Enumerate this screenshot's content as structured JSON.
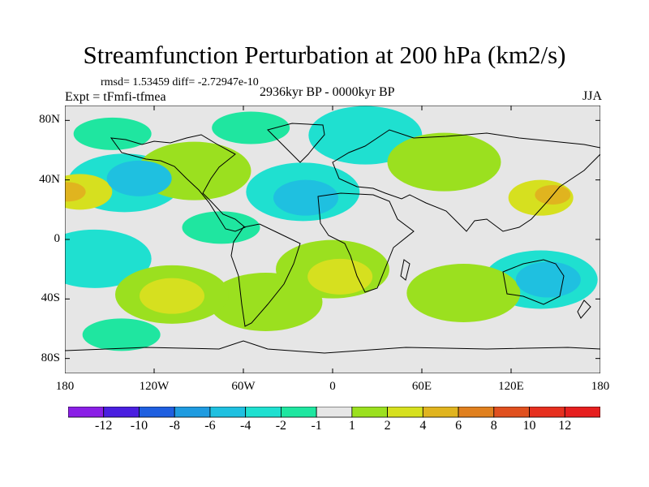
{
  "title": "Streamfunction Perturbation at 200 hPa (km2/s)",
  "stats": "rmsd= 1.53459 diff= -2.72947e-10",
  "experiment": "Expt = tFmfi-tfmea",
  "period": "2936kyr BP - 0000kyr BP",
  "season": "JJA",
  "axes": {
    "y_ticks": [
      {
        "label": "80N",
        "lat": 80
      },
      {
        "label": "40N",
        "lat": 40
      },
      {
        "label": "0",
        "lat": 0
      },
      {
        "label": "40S",
        "lat": -40
      },
      {
        "label": "80S",
        "lat": -80
      }
    ],
    "x_ticks": [
      {
        "label": "180",
        "lon": -180
      },
      {
        "label": "120W",
        "lon": -120
      },
      {
        "label": "60W",
        "lon": -60
      },
      {
        "label": "0",
        "lon": 0
      },
      {
        "label": "60E",
        "lon": 60
      },
      {
        "label": "120E",
        "lon": 120
      },
      {
        "label": "180",
        "lon": 180
      }
    ],
    "lat_range": [
      -90,
      90
    ],
    "lon_range": [
      -180,
      180
    ]
  },
  "colorbar": {
    "labels": [
      "-12",
      "-10",
      "-8",
      "-6",
      "-4",
      "-2",
      "-1",
      "1",
      "2",
      "4",
      "6",
      "8",
      "10",
      "12"
    ],
    "colors": [
      "#8a1fe6",
      "#4a1fe0",
      "#1f5fe0",
      "#1f9be0",
      "#1fc0e0",
      "#1fe0d0",
      "#1fe6a0",
      "#e6e6e6",
      "#9be01f",
      "#d6e01f",
      "#e0b41f",
      "#e0801f",
      "#e0501f",
      "#e6301f",
      "#e61f1f"
    ]
  },
  "field_colors": {
    "neutral": "#e6e6e6",
    "pos_2": "#9be01f",
    "pos_4": "#d6e01f",
    "pos_6": "#e0b41f",
    "neg_1": "#1fe6a0",
    "neg_2": "#1fe0d0",
    "neg_4": "#1fc0e0"
  },
  "field_anomalies": [
    {
      "name": "north-pacific-east-positive",
      "lon": -170,
      "lat": 32,
      "value": 4
    },
    {
      "name": "north-pacific-east-core",
      "lon": -178,
      "lat": 32,
      "value": 6
    },
    {
      "name": "north-pacific-negative",
      "lon": -140,
      "lat": 38,
      "value": -2
    },
    {
      "name": "north-pacific-negative-core",
      "lon": -130,
      "lat": 41,
      "value": -4
    },
    {
      "name": "western-north-america-positive",
      "lon": -93,
      "lat": 46,
      "value": 2
    },
    {
      "name": "alaska-negative",
      "lon": -148,
      "lat": 71,
      "value": -1
    },
    {
      "name": "canada-arctic-negative",
      "lon": -55,
      "lat": 75,
      "value": -1
    },
    {
      "name": "north-atlantic-negative",
      "lon": -20,
      "lat": 32,
      "value": -2
    },
    {
      "name": "north-atlantic-negative-core",
      "lon": -18,
      "lat": 28,
      "value": -4
    },
    {
      "name": "europe-negative",
      "lon": 22,
      "lat": 70,
      "value": -2
    },
    {
      "name": "central-asia-positive",
      "lon": 75,
      "lat": 52,
      "value": 2
    },
    {
      "name": "east-asia-positive",
      "lon": 140,
      "lat": 28,
      "value": 4
    },
    {
      "name": "east-asia-core",
      "lon": 148,
      "lat": 30,
      "value": 6
    },
    {
      "name": "central-america-negative",
      "lon": -75,
      "lat": 8,
      "value": -1
    },
    {
      "name": "south-pacific-negative",
      "lon": -160,
      "lat": -13,
      "value": -2
    },
    {
      "name": "south-atlantic-positive",
      "lon": 0,
      "lat": -20,
      "value": 2
    },
    {
      "name": "south-atlantic-core",
      "lon": 5,
      "lat": -25,
      "value": 4
    },
    {
      "name": "south-america-positive",
      "lon": -45,
      "lat": -42,
      "value": 2
    },
    {
      "name": "south-east-pacific-positive",
      "lon": -108,
      "lat": -37,
      "value": 2
    },
    {
      "name": "south-east-pacific-core",
      "lon": -108,
      "lat": -38,
      "value": 4
    },
    {
      "name": "australia-negative",
      "lon": 140,
      "lat": -27,
      "value": -2
    },
    {
      "name": "australia-negative-core",
      "lon": 145,
      "lat": -27,
      "value": -4
    },
    {
      "name": "southern-ocean-negative",
      "lon": -142,
      "lat": -64,
      "value": -1
    },
    {
      "name": "south-indian-ocean-positive",
      "lon": 88,
      "lat": -36,
      "value": 2
    }
  ]
}
